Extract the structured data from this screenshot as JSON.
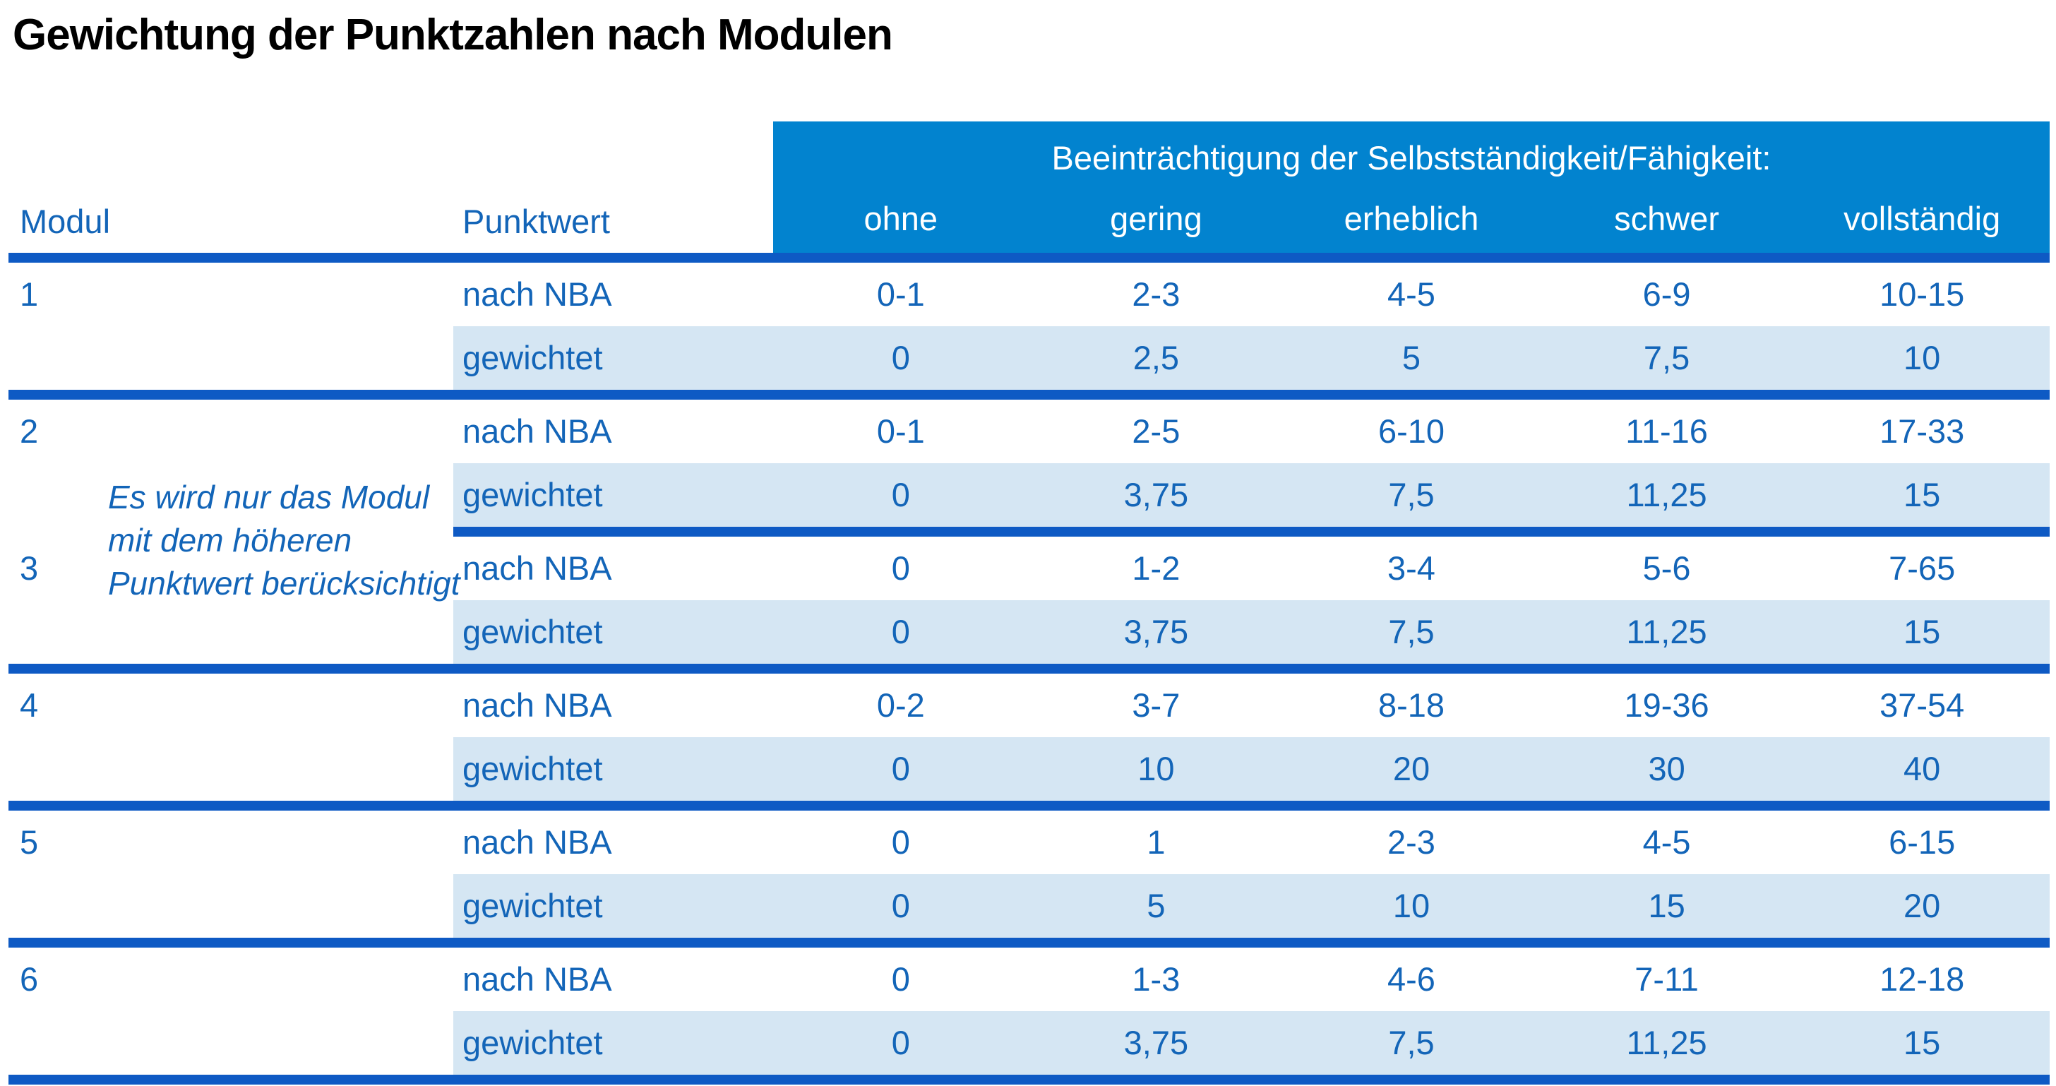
{
  "title": "Gewichtung der Punktzahlen nach Modulen",
  "colors": {
    "header_blue": "#0283cf",
    "separator_blue": "#0e5ac4",
    "text_blue": "#1365b8",
    "light_row_blue": "#d5e6f3",
    "title_black": "#000000",
    "header_text_white": "#ffffff"
  },
  "table": {
    "modul_header": "Modul",
    "punktwert_header": "Punktwert",
    "impairment_header": "Beeinträchtigung der Selbstständigkeit/Fähigkeit:",
    "severity_labels": [
      "ohne",
      "gering",
      "erheblich",
      "schwer",
      "vollständig"
    ],
    "row_labels": {
      "nba": "nach NBA",
      "weighted": "gewichtet"
    },
    "note": "Es wird nur das Modul mit dem höheren Punktwert berücksichtigt",
    "note_lines": [
      "Es wird nur das Modul",
      "mit dem höheren",
      "Punktwert berücksichtigt"
    ],
    "modules": [
      {
        "number": "1",
        "nba": [
          "0-1",
          "2-3",
          "4-5",
          "6-9",
          "10-15"
        ],
        "weighted": [
          "0",
          "2,5",
          "5",
          "7,5",
          "10"
        ]
      },
      {
        "number": "2",
        "nba": [
          "0-1",
          "2-5",
          "6-10",
          "11-16",
          "17-33"
        ],
        "weighted": [
          "0",
          "3,75",
          "7,5",
          "11,25",
          "15"
        ]
      },
      {
        "number": "3",
        "nba": [
          "0",
          "1-2",
          "3-4",
          "5-6",
          "7-65"
        ],
        "weighted": [
          "0",
          "3,75",
          "7,5",
          "11,25",
          "15"
        ]
      },
      {
        "number": "4",
        "nba": [
          "0-2",
          "3-7",
          "8-18",
          "19-36",
          "37-54"
        ],
        "weighted": [
          "0",
          "10",
          "20",
          "30",
          "40"
        ]
      },
      {
        "number": "5",
        "nba": [
          "0",
          "1",
          "2-3",
          "4-5",
          "6-15"
        ],
        "weighted": [
          "0",
          "5",
          "10",
          "15",
          "20"
        ]
      },
      {
        "number": "6",
        "nba": [
          "0",
          "1-3",
          "4-6",
          "7-11",
          "12-18"
        ],
        "weighted": [
          "0",
          "3,75",
          "7,5",
          "11,25",
          "15"
        ]
      }
    ]
  }
}
